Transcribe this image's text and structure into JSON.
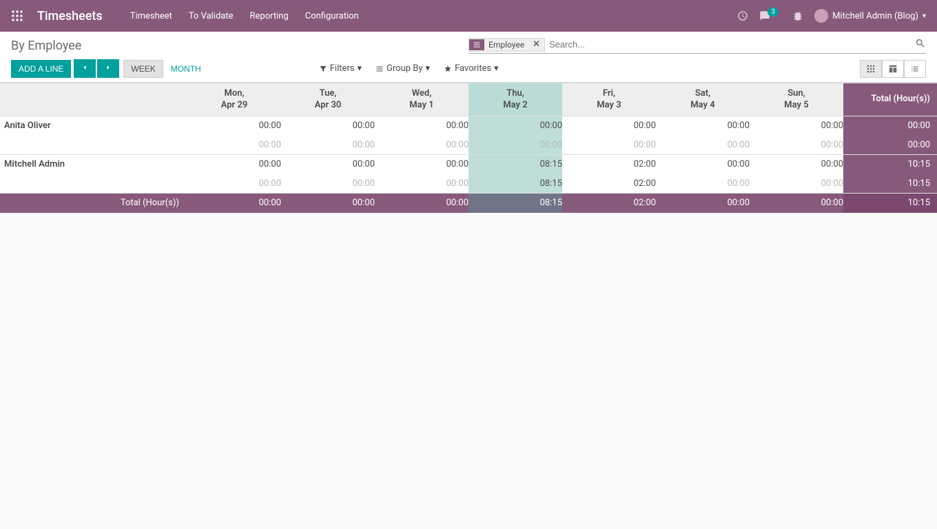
{
  "header": {
    "app_title": "Timesheets",
    "menu": [
      "Timesheet",
      "To Validate",
      "Reporting",
      "Configuration"
    ],
    "msg_count": "3",
    "user_name": "Mitchell Admin (Blog)"
  },
  "breadcrumb": "By Employee",
  "search": {
    "facet_label": "Employee",
    "placeholder": "Search..."
  },
  "buttons": {
    "add_line": "ADD A LINE",
    "week": "WEEK",
    "month": "MONTH",
    "filters": "Filters",
    "group_by": "Group By",
    "favorites": "Favorites"
  },
  "columns": [
    {
      "dow": "Mon,",
      "date": "Apr 29",
      "today": false
    },
    {
      "dow": "Tue,",
      "date": "Apr 30",
      "today": false
    },
    {
      "dow": "Wed,",
      "date": "May 1",
      "today": false
    },
    {
      "dow": "Thu,",
      "date": "May 2",
      "today": true
    },
    {
      "dow": "Fri,",
      "date": "May 3",
      "today": false
    },
    {
      "dow": "Sat,",
      "date": "May 4",
      "today": false
    },
    {
      "dow": "Sun,",
      "date": "May 5",
      "today": false
    }
  ],
  "total_header": "Total (Hour(s))",
  "employees": [
    {
      "name": "Anita Oliver",
      "row1": [
        "00:00",
        "00:00",
        "00:00",
        "00:00",
        "00:00",
        "00:00",
        "00:00"
      ],
      "total1": "00:00",
      "row2": [
        "00:00",
        "00:00",
        "00:00",
        "00:00",
        "00:00",
        "00:00",
        "00:00"
      ],
      "total2": "00:00"
    },
    {
      "name": "Mitchell Admin",
      "row1": [
        "00:00",
        "00:00",
        "00:00",
        "08:15",
        "02:00",
        "00:00",
        "00:00"
      ],
      "total1": "10:15",
      "row2": [
        "00:00",
        "00:00",
        "00:00",
        "08:15",
        "02:00",
        "00:00",
        "00:00"
      ],
      "total2": "10:15"
    }
  ],
  "footer": {
    "label": "Total (Hour(s))",
    "cells": [
      "00:00",
      "00:00",
      "00:00",
      "08:15",
      "02:00",
      "00:00",
      "00:00"
    ],
    "total": "10:15"
  },
  "colors": {
    "brand": "#875a7b",
    "teal": "#00a09d",
    "today_bg": "#bfded8",
    "today_head": "#bbdcd6",
    "footer_today": "#6f7586",
    "footer_total": "#7c4870"
  }
}
